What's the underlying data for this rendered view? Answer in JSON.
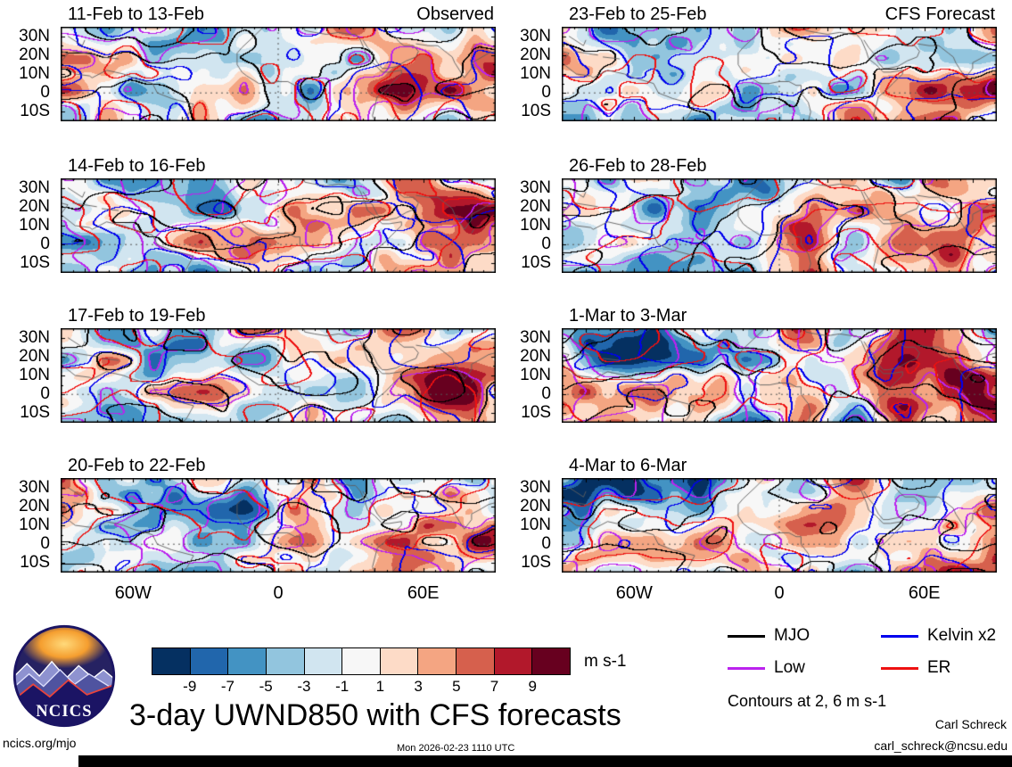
{
  "title": "3-day UWND850 with CFS forecasts",
  "header": {
    "observed_label": "Observed",
    "forecast_label": "CFS Forecast"
  },
  "panels": {
    "observed": [
      {
        "title": "11-Feb to 13-Feb"
      },
      {
        "title": "14-Feb to 16-Feb"
      },
      {
        "title": "17-Feb to 19-Feb"
      },
      {
        "title": "20-Feb to 22-Feb"
      }
    ],
    "forecast": [
      {
        "title": "23-Feb to 25-Feb"
      },
      {
        "title": "26-Feb to 28-Feb"
      },
      {
        "title": "1-Mar to 3-Mar"
      },
      {
        "title": "4-Mar to 6-Mar"
      }
    ]
  },
  "axes": {
    "y_ticks": [
      "30N",
      "20N",
      "10N",
      "0",
      "10S"
    ],
    "x_ticks": [
      "60W",
      "0",
      "60E"
    ]
  },
  "colorbar": {
    "tick_labels": [
      "-9",
      "-7",
      "-5",
      "-3",
      "-1",
      "1",
      "3",
      "5",
      "7",
      "9"
    ],
    "colors": [
      "#053061",
      "#2166ac",
      "#4393c3",
      "#92c5de",
      "#d1e5f0",
      "#f7f7f7",
      "#fddbc7",
      "#f4a582",
      "#d6604d",
      "#b2182b",
      "#67001f"
    ],
    "units_label": "m s-1"
  },
  "legend": {
    "items": [
      {
        "label": "MJO",
        "color": "#000000"
      },
      {
        "label": "Kelvin x2",
        "color": "#0000ee"
      },
      {
        "label": "Low",
        "color": "#bb22ee"
      },
      {
        "label": "ER",
        "color": "#ee1111"
      }
    ],
    "contours_note": "Contours at 2, 6 m s-1"
  },
  "logo": {
    "text": "NCICS"
  },
  "footer": {
    "site": "ncics.org/mjo",
    "timestamp": "Mon 2026-02-23 1110 UTC",
    "author": "Carl Schreck",
    "email": "carl_schreck@ncsu.edu"
  },
  "chart_data": {
    "type": "heatmap",
    "title": "3-day UWND850 with CFS forecasts",
    "variable": "UWND850",
    "units": "m s-1",
    "lon_range": [
      -90,
      90
    ],
    "lat_range": [
      -15,
      35
    ],
    "lon_tick_labels": [
      "60W",
      "0",
      "60E"
    ],
    "lat_tick_labels": [
      "30N",
      "20N",
      "10N",
      "0",
      "10S"
    ],
    "color_levels": [
      -9,
      -7,
      -5,
      -3,
      -1,
      1,
      3,
      5,
      7,
      9
    ],
    "contour_levels": [
      2,
      6
    ],
    "columns": [
      "Observed",
      "CFS Forecast"
    ],
    "panels": [
      {
        "column": "Observed",
        "period": "11-Feb to 13-Feb"
      },
      {
        "column": "Observed",
        "period": "14-Feb to 16-Feb"
      },
      {
        "column": "Observed",
        "period": "17-Feb to 19-Feb"
      },
      {
        "column": "Observed",
        "period": "20-Feb to 22-Feb"
      },
      {
        "column": "CFS Forecast",
        "period": "23-Feb to 25-Feb"
      },
      {
        "column": "CFS Forecast",
        "period": "26-Feb to 28-Feb"
      },
      {
        "column": "CFS Forecast",
        "period": "1-Mar to 3-Mar"
      },
      {
        "column": "CFS Forecast",
        "period": "4-Mar to 6-Mar"
      }
    ],
    "overlays": [
      {
        "name": "MJO",
        "color": "#000000"
      },
      {
        "name": "Kelvin x2",
        "color": "#0000ee"
      },
      {
        "name": "Low",
        "color": "#bb22ee"
      },
      {
        "name": "ER",
        "color": "#ee1111"
      }
    ]
  }
}
